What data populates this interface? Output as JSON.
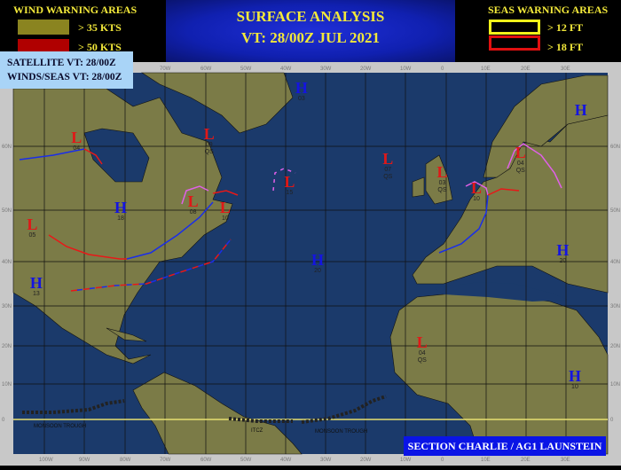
{
  "header": {
    "title_line1": "SURFACE ANALYSIS",
    "title_line2": "VT: 28/00Z JUL 2021",
    "wind_legend": {
      "title": "WIND WARNING AREAS",
      "items": [
        {
          "label": "> 35 KTS",
          "color": "#8a8420"
        },
        {
          "label": "> 50 KTS",
          "color": "#b00000"
        }
      ]
    },
    "seas_legend": {
      "title": "SEAS WARNING AREAS",
      "items": [
        {
          "label": "> 12 FT",
          "color": "#f2f21a"
        },
        {
          "label": "> 18 FT",
          "color": "#e01010"
        }
      ]
    }
  },
  "info": {
    "satellite": "SATELLITE  VT: 28/00Z",
    "winds_seas": "WINDS/SEAS VT: 28/00Z"
  },
  "footer": {
    "section": "SECTION CHARLIE / AG1 LAUNSTEIN"
  },
  "map": {
    "lon_labels": [
      "100W",
      "90W",
      "80W",
      "70W",
      "60W",
      "50W",
      "40W",
      "30W",
      "20W",
      "10W",
      "0",
      "10E",
      "20E",
      "30E"
    ],
    "lat_labels": [
      "60N",
      "50N",
      "40N",
      "30N",
      "20N",
      "10N",
      "0"
    ],
    "colors": {
      "ocean": "#1b3a6b",
      "land": "#7b7b47",
      "cold_front": "#1a2ee8",
      "warm_front": "#e81818",
      "occluded_front": "#e060e8"
    },
    "feature_labels": {
      "monsoon_trough_west": "MONSOON TROUGH",
      "itcz": "ITCZ",
      "monsoon_trough_east": "MONSOON TROUGH"
    },
    "centers": [
      {
        "type": "L",
        "lat": 62,
        "lon": -92,
        "value": "04"
      },
      {
        "type": "L",
        "lat": 62,
        "lon": -59,
        "value": "09",
        "note": "QS"
      },
      {
        "type": "H",
        "lat": 51,
        "lon": -81,
        "value": "18"
      },
      {
        "type": "L",
        "lat": 48,
        "lon": -103,
        "value": "05"
      },
      {
        "type": "H",
        "lat": 36,
        "lon": -102,
        "value": "13"
      },
      {
        "type": "L",
        "lat": 52,
        "lon": -63,
        "value": "08"
      },
      {
        "type": "L",
        "lat": 51,
        "lon": -55,
        "value": "10"
      },
      {
        "type": "L",
        "lat": 55,
        "lon": -39,
        "value": "15"
      },
      {
        "type": "H",
        "lat": 41,
        "lon": -32,
        "value": "20"
      },
      {
        "type": "H",
        "lat": 70,
        "lon": -36,
        "value": "03"
      },
      {
        "type": "L",
        "lat": 58,
        "lon": -14.5,
        "value": "07",
        "note": "QS"
      },
      {
        "type": "L",
        "lat": 56,
        "lon": -1,
        "value": "03",
        "note": "QS"
      },
      {
        "type": "L",
        "lat": 54,
        "lon": 7.5,
        "value": "10"
      },
      {
        "type": "L",
        "lat": 59,
        "lon": 18.5,
        "value": "04",
        "note": "QS"
      },
      {
        "type": "H",
        "lat": 43,
        "lon": 29,
        "value": "20"
      },
      {
        "type": "H",
        "lat": 67,
        "lon": 33.5,
        "value": ""
      },
      {
        "type": "L",
        "lat": 21,
        "lon": -6,
        "value": "04",
        "note": "QS"
      },
      {
        "type": "H",
        "lat": 13,
        "lon": 32,
        "value": "10"
      }
    ]
  }
}
